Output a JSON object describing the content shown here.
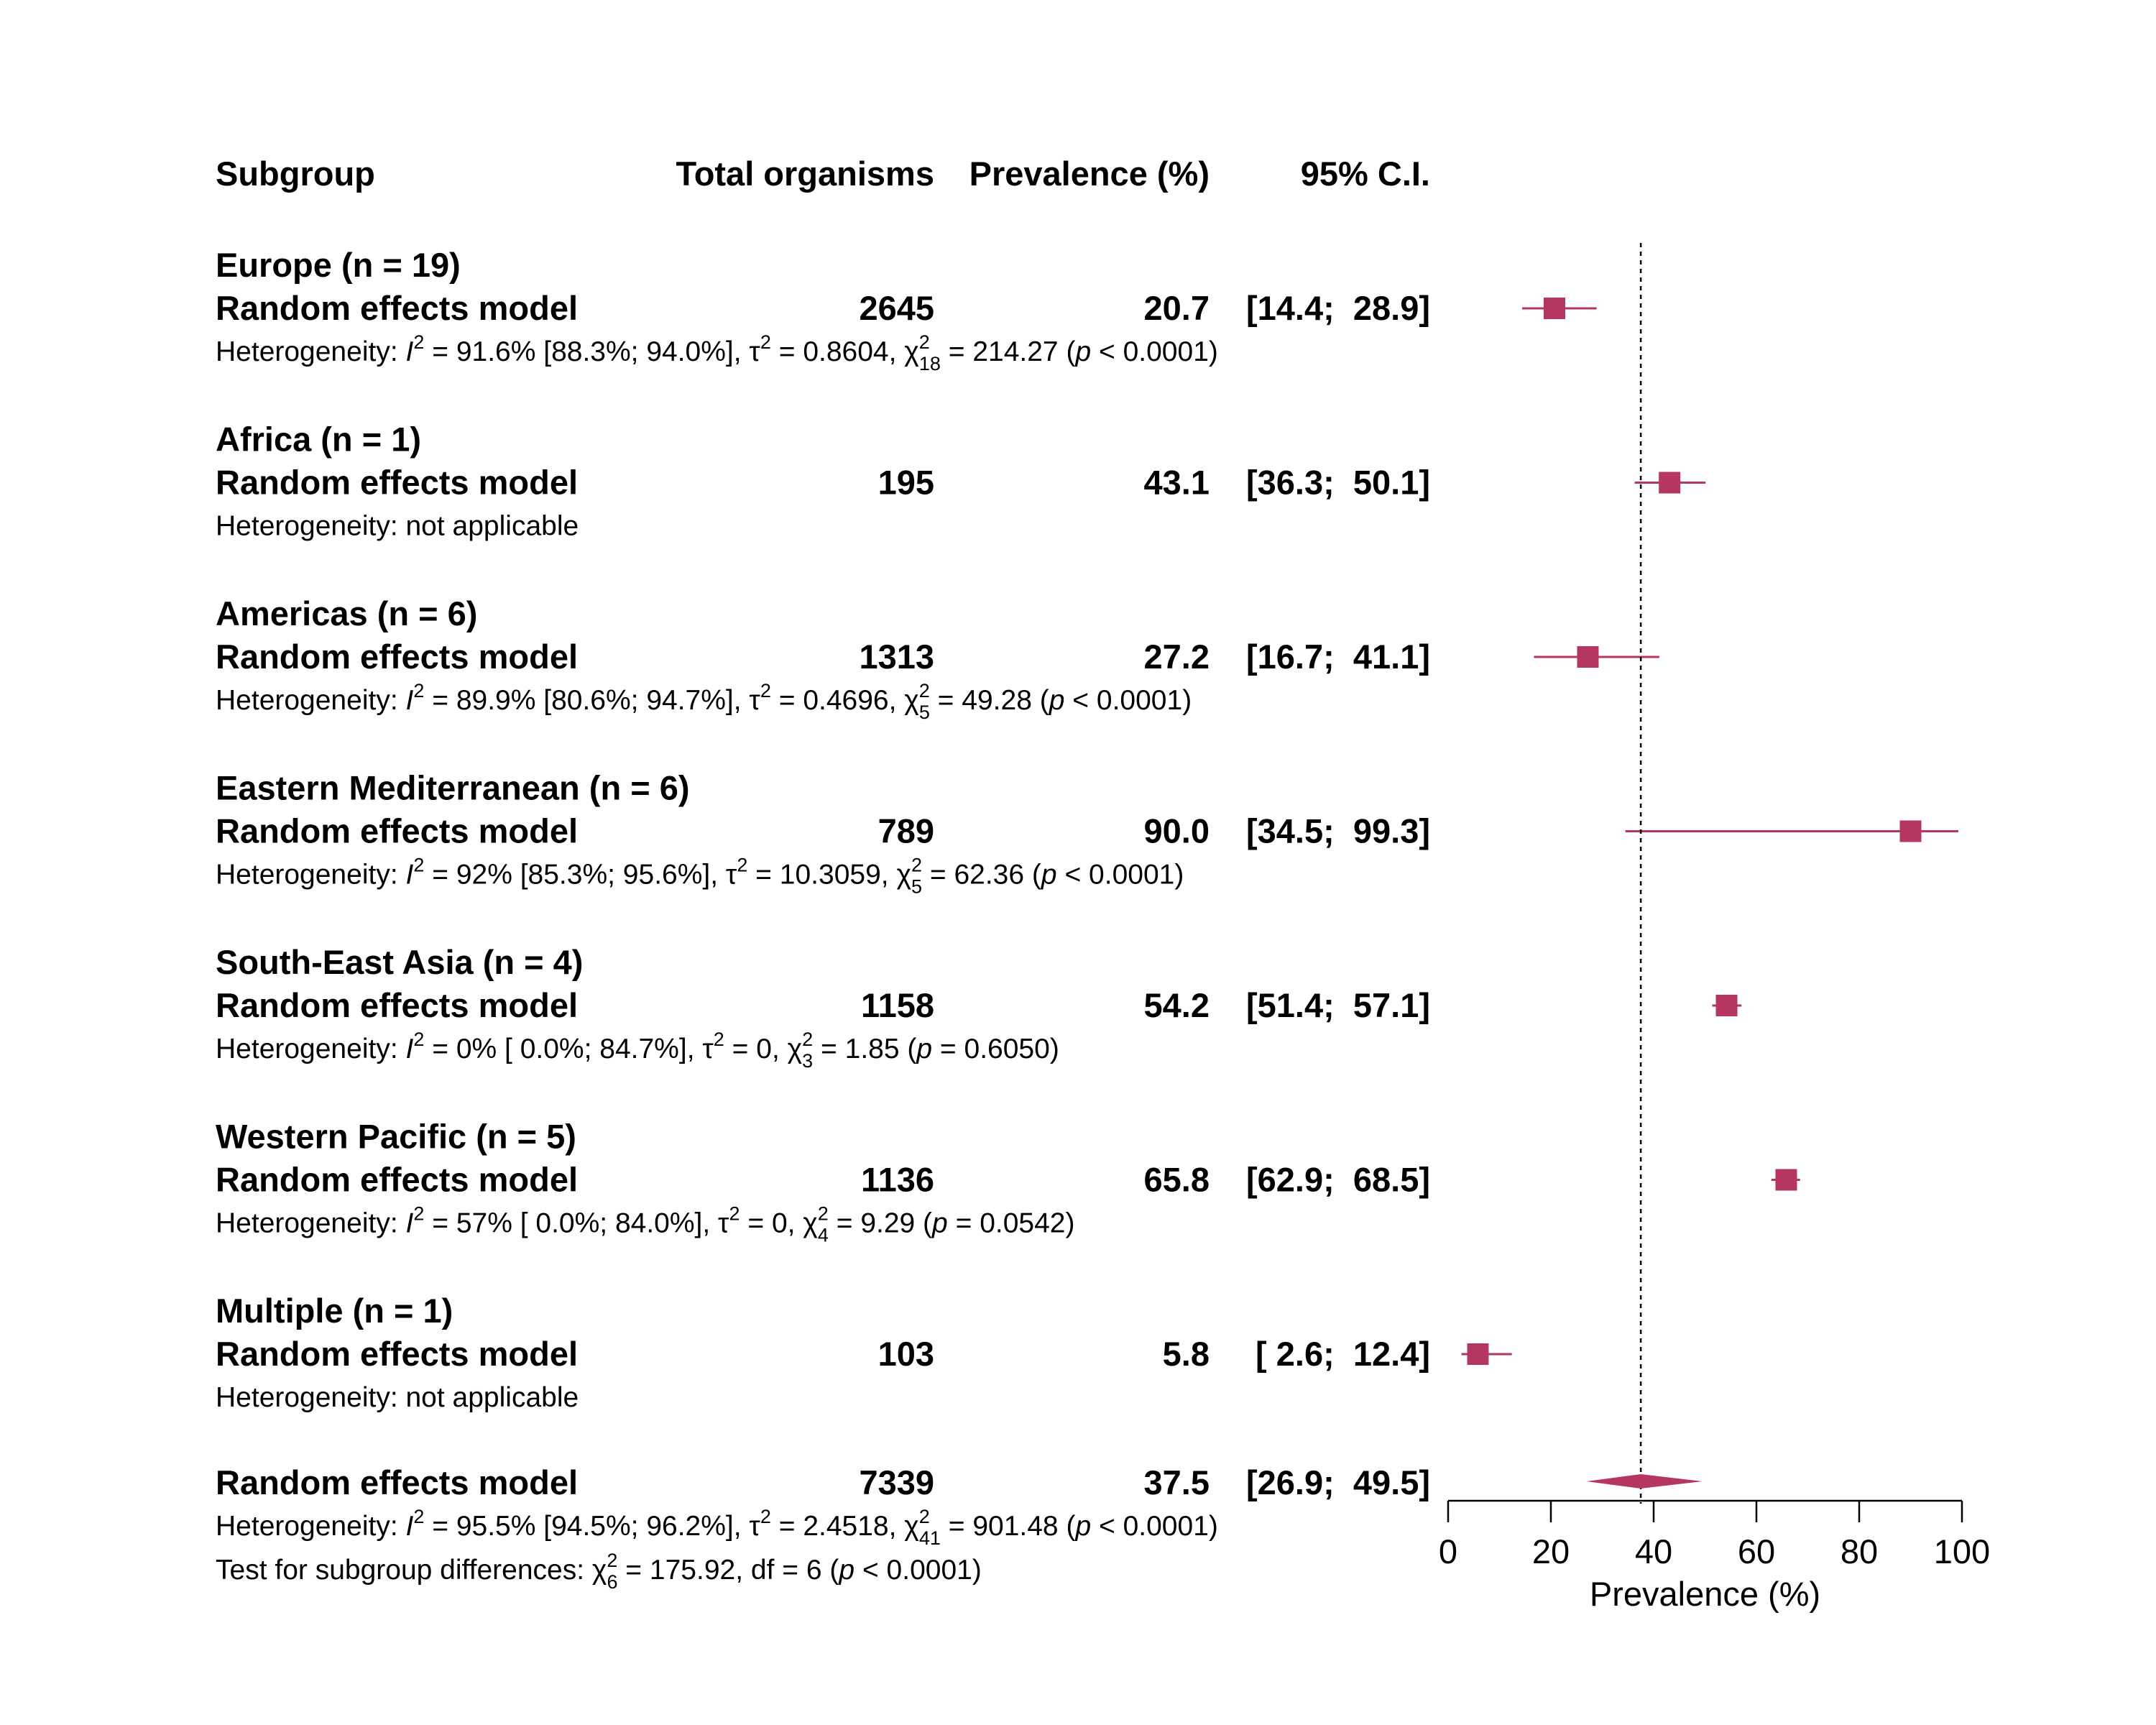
{
  "headers": {
    "subgroup": "Subgroup",
    "total": "Total organisms",
    "prevalence": "Prevalence (%)",
    "ci": "95% C.I."
  },
  "model_label": "Random effects model",
  "colors": {
    "marker": "#B5365F",
    "text": "#000000"
  },
  "chart_data": {
    "type": "forest",
    "reference_line": 37.5,
    "xlim": [
      0,
      100
    ],
    "ticks": [
      0,
      20,
      40,
      60,
      80,
      100
    ],
    "xlabel": "Prevalence (%)",
    "subgroups": [
      {
        "name": "Europe (n = 19)",
        "total": "2645",
        "est_text": "20.7",
        "ci_text": "[14.4;  28.9]",
        "est": 20.7,
        "lo": 14.4,
        "hi": 28.9,
        "het": {
          "type": "full",
          "I2": "91.6% [88.3%; 94.0%]",
          "tau2": "0.8604",
          "df": "18",
          "chi2": "214.27",
          "p": "< 0.0001"
        }
      },
      {
        "name": "Africa (n = 1)",
        "total": "195",
        "est_text": "43.1",
        "ci_text": "[36.3;  50.1]",
        "est": 43.1,
        "lo": 36.3,
        "hi": 50.1,
        "het": {
          "type": "na",
          "text": "Heterogeneity: not applicable"
        }
      },
      {
        "name": "Americas (n = 6)",
        "total": "1313",
        "est_text": "27.2",
        "ci_text": "[16.7;  41.1]",
        "est": 27.2,
        "lo": 16.7,
        "hi": 41.1,
        "het": {
          "type": "full",
          "I2": "89.9% [80.6%; 94.7%]",
          "tau2": "0.4696",
          "df": "5",
          "chi2": "49.28",
          "p": "< 0.0001"
        }
      },
      {
        "name": "Eastern Mediterranean (n = 6)",
        "total": "789",
        "est_text": "90.0",
        "ci_text": "[34.5;  99.3]",
        "est": 90.0,
        "lo": 34.5,
        "hi": 99.3,
        "het": {
          "type": "full",
          "I2": "92% [85.3%; 95.6%]",
          "tau2": "10.3059",
          "df": "5",
          "chi2": "62.36",
          "p": "< 0.0001"
        }
      },
      {
        "name": "South-East Asia (n = 4)",
        "total": "1158",
        "est_text": "54.2",
        "ci_text": "[51.4;  57.1]",
        "est": 54.2,
        "lo": 51.4,
        "hi": 57.1,
        "het": {
          "type": "full",
          "I2": "0% [ 0.0%; 84.7%]",
          "tau2": "0",
          "df": "3",
          "chi2": "1.85",
          "p": "= 0.6050"
        }
      },
      {
        "name": "Western Pacific (n = 5)",
        "total": "1136",
        "est_text": "65.8",
        "ci_text": "[62.9;  68.5]",
        "est": 65.8,
        "lo": 62.9,
        "hi": 68.5,
        "het": {
          "type": "full",
          "I2": "57% [ 0.0%; 84.0%]",
          "tau2": "0",
          "df": "4",
          "chi2": "9.29",
          "p": "= 0.0542"
        }
      },
      {
        "name": "Multiple (n = 1)",
        "total": "103",
        "est_text": "5.8",
        "ci_text": "[ 2.6;  12.4]",
        "est": 5.8,
        "lo": 2.6,
        "hi": 12.4,
        "het": {
          "type": "na",
          "text": "Heterogeneity: not applicable"
        }
      }
    ],
    "overall": {
      "label": "Random effects model",
      "total": "7339",
      "est_text": "37.5",
      "ci_text": "[26.9;  49.5]",
      "est": 37.5,
      "lo": 26.9,
      "hi": 49.5,
      "het": {
        "type": "full",
        "I2": "95.5% [94.5%; 96.2%]",
        "tau2": "2.4518",
        "df": "41",
        "chi2": "901.48",
        "p": "< 0.0001"
      },
      "subgroup_test": {
        "prefix": "Test for subgroup differences: ",
        "df": "6",
        "chi2": "175.92",
        "dftext": "df = 6",
        "p": "< 0.0001"
      }
    }
  }
}
